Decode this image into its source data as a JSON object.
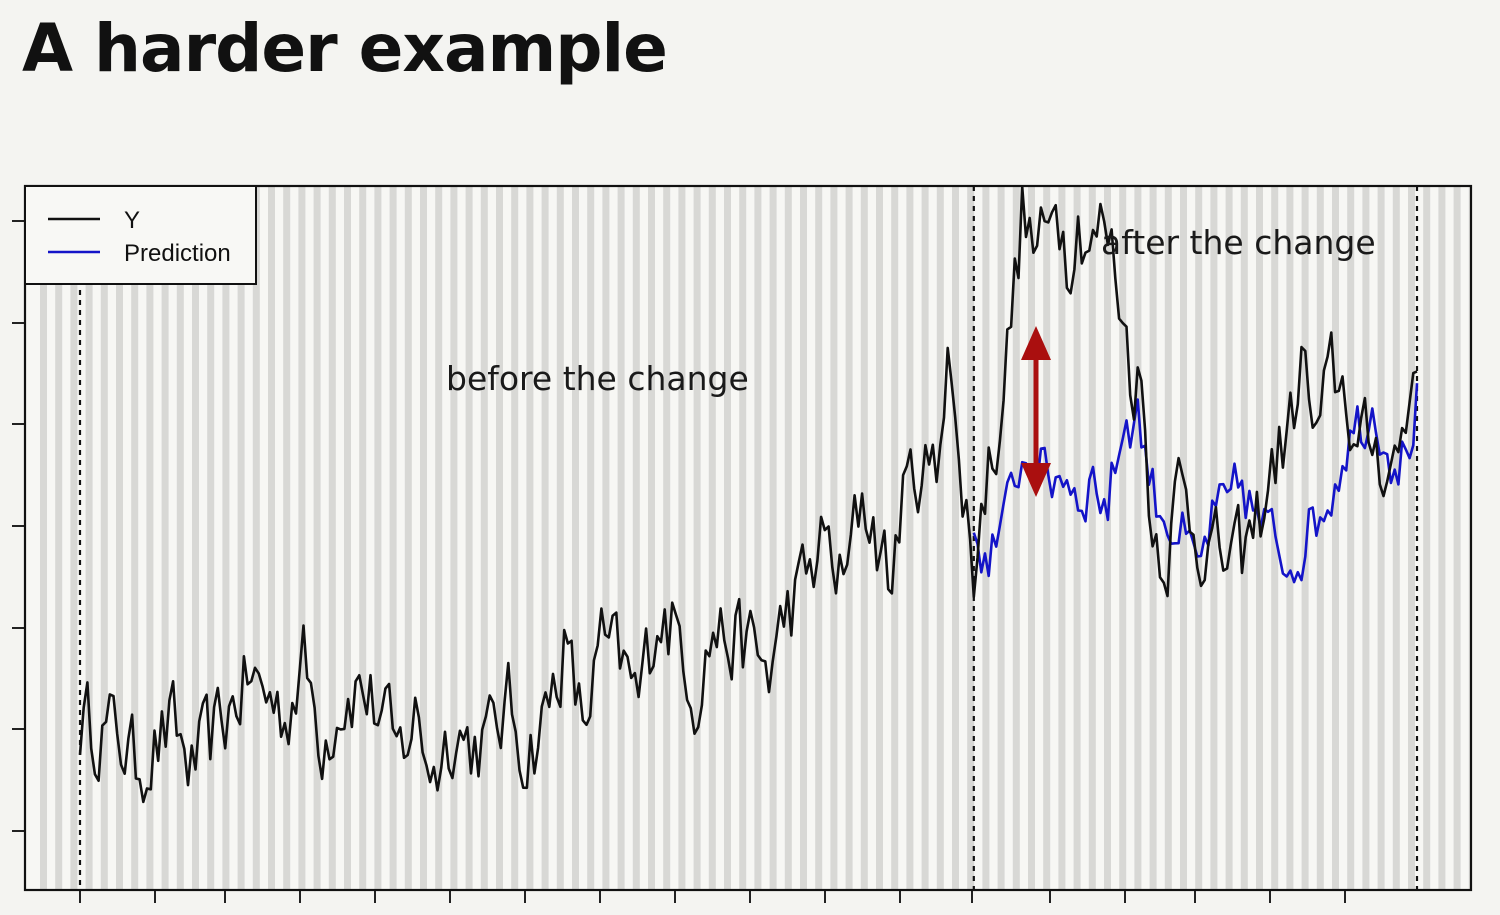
{
  "slide": {
    "title": "A harder example"
  },
  "colors": {
    "observed": "#111111",
    "prediction": "#1414c8",
    "arrow": "#aa0f0f",
    "stripe": "#d8d8d5"
  },
  "chart_data": {
    "type": "line",
    "grid": "vertical stripes",
    "legend": {
      "placement": "top-left",
      "entries": [
        "Y",
        "Prediction"
      ]
    },
    "annotations": [
      {
        "text": "before the change",
        "region": "before"
      },
      {
        "text": "after the change",
        "region": "after"
      }
    ],
    "change_point_index": 240,
    "n_points": 360,
    "ylim": [
      0,
      13
    ],
    "series": [
      {
        "name": "Y",
        "anchors": [
          [
            0,
            3.1
          ],
          [
            10,
            2.9
          ],
          [
            15,
            2.3
          ],
          [
            25,
            3.0
          ],
          [
            30,
            2.2
          ],
          [
            40,
            3.3
          ],
          [
            45,
            3.9
          ],
          [
            52,
            3.5
          ],
          [
            55,
            3.2
          ],
          [
            60,
            4.2
          ],
          [
            65,
            2.8
          ],
          [
            70,
            3.5
          ],
          [
            75,
            3.8
          ],
          [
            82,
            3.1
          ],
          [
            85,
            2.4
          ],
          [
            90,
            3.2
          ],
          [
            95,
            2.2
          ],
          [
            100,
            3.0
          ],
          [
            105,
            2.7
          ],
          [
            110,
            2.8
          ],
          [
            115,
            3.4
          ],
          [
            120,
            2.5
          ],
          [
            125,
            3.2
          ],
          [
            130,
            4.5
          ],
          [
            135,
            3.0
          ],
          [
            140,
            4.5
          ],
          [
            145,
            4.2
          ],
          [
            150,
            3.5
          ],
          [
            155,
            5.2
          ],
          [
            162,
            4.6
          ],
          [
            165,
            3.6
          ],
          [
            170,
            4.8
          ],
          [
            175,
            4.6
          ],
          [
            180,
            4.5
          ],
          [
            185,
            4.0
          ],
          [
            190,
            5.2
          ],
          [
            195,
            5.7
          ],
          [
            200,
            6.5
          ],
          [
            205,
            5.5
          ],
          [
            210,
            7.3
          ],
          [
            215,
            6.3
          ],
          [
            218,
            5.6
          ],
          [
            220,
            7.0
          ],
          [
            225,
            7.8
          ],
          [
            230,
            7.6
          ],
          [
            233,
            10.5
          ],
          [
            236,
            7.5
          ],
          [
            238,
            7.0
          ],
          [
            240,
            5.9
          ],
          [
            243,
            7.5
          ],
          [
            246,
            8.4
          ],
          [
            250,
            10.5
          ],
          [
            253,
            12.5
          ],
          [
            256,
            11.8
          ],
          [
            260,
            12.0
          ],
          [
            262,
            13.1
          ],
          [
            265,
            11.8
          ],
          [
            268,
            12.4
          ],
          [
            272,
            11.9
          ],
          [
            275,
            12.3
          ],
          [
            278,
            11.5
          ],
          [
            282,
            9.7
          ],
          [
            285,
            9.3
          ],
          [
            288,
            6.6
          ],
          [
            292,
            6.3
          ],
          [
            295,
            7.5
          ],
          [
            300,
            6.6
          ],
          [
            305,
            6.2
          ],
          [
            310,
            6.0
          ],
          [
            315,
            6.5
          ],
          [
            320,
            7.8
          ],
          [
            325,
            8.5
          ],
          [
            328,
            9.8
          ],
          [
            332,
            8.2
          ],
          [
            336,
            9.5
          ],
          [
            340,
            9.2
          ],
          [
            343,
            8.0
          ],
          [
            347,
            8.3
          ],
          [
            352,
            7.8
          ],
          [
            356,
            8.6
          ],
          [
            359,
            10.3
          ]
        ]
      },
      {
        "name": "Prediction",
        "start_index": 240,
        "anchors": [
          [
            240,
            6.1
          ],
          [
            244,
            6.3
          ],
          [
            248,
            6.6
          ],
          [
            252,
            7.9
          ],
          [
            256,
            8.0
          ],
          [
            260,
            7.5
          ],
          [
            264,
            7.8
          ],
          [
            268,
            7.3
          ],
          [
            272,
            7.6
          ],
          [
            276,
            7.1
          ],
          [
            280,
            8.6
          ],
          [
            284,
            8.8
          ],
          [
            288,
            7.4
          ],
          [
            292,
            6.9
          ],
          [
            296,
            6.5
          ],
          [
            300,
            5.8
          ],
          [
            304,
            6.8
          ],
          [
            308,
            7.0
          ],
          [
            312,
            7.5
          ],
          [
            316,
            6.8
          ],
          [
            320,
            6.5
          ],
          [
            324,
            6.1
          ],
          [
            328,
            6.4
          ],
          [
            332,
            6.9
          ],
          [
            336,
            7.4
          ],
          [
            340,
            8.3
          ],
          [
            344,
            8.7
          ],
          [
            348,
            8.9
          ],
          [
            352,
            8.1
          ],
          [
            356,
            8.0
          ],
          [
            359,
            9.0
          ]
        ]
      }
    ]
  }
}
